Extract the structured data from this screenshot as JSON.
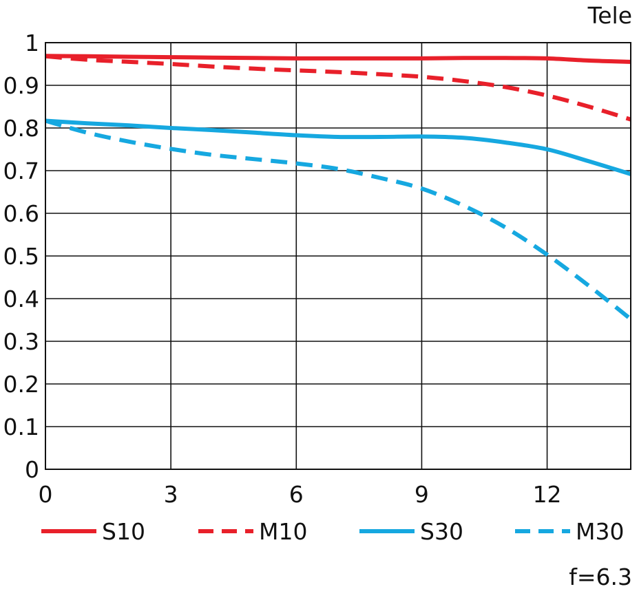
{
  "chart_data": {
    "type": "line",
    "title": "Tele",
    "footnote": "f=6.3",
    "xlabel": "",
    "ylabel": "",
    "xlim": [
      0,
      14
    ],
    "ylim": [
      0,
      1
    ],
    "x_ticks": [
      0,
      3,
      6,
      9,
      12
    ],
    "x_tick_labels": [
      "0",
      "3",
      "6",
      "9",
      "12"
    ],
    "y_ticks": [
      0,
      0.1,
      0.2,
      0.3,
      0.4,
      0.5,
      0.6,
      0.7,
      0.8,
      0.9,
      1
    ],
    "y_tick_labels": [
      "0",
      "0.1",
      "0.2",
      "0.3",
      "0.4",
      "0.5",
      "0.6",
      "0.7",
      "0.8",
      "0.9",
      "1"
    ],
    "grid": true,
    "legend_position": "bottom",
    "x": [
      0,
      1,
      2,
      3,
      4,
      5,
      6,
      7,
      8,
      9,
      10,
      11,
      12,
      13,
      14
    ],
    "series": [
      {
        "name": "S10",
        "color": "#e8202a",
        "dashed": false,
        "values": [
          0.969,
          0.968,
          0.967,
          0.966,
          0.965,
          0.964,
          0.963,
          0.963,
          0.963,
          0.963,
          0.964,
          0.964,
          0.963,
          0.958,
          0.955
        ]
      },
      {
        "name": "M10",
        "color": "#e8202a",
        "dashed": true,
        "values": [
          0.968,
          0.96,
          0.955,
          0.95,
          0.944,
          0.939,
          0.935,
          0.931,
          0.926,
          0.92,
          0.91,
          0.896,
          0.876,
          0.85,
          0.82
        ]
      },
      {
        "name": "S30",
        "color": "#16a8e0",
        "dashed": false,
        "values": [
          0.817,
          0.811,
          0.806,
          0.8,
          0.795,
          0.789,
          0.783,
          0.779,
          0.779,
          0.78,
          0.777,
          0.766,
          0.75,
          0.722,
          0.692
        ]
      },
      {
        "name": "M30",
        "color": "#16a8e0",
        "dashed": true,
        "values": [
          0.817,
          0.789,
          0.768,
          0.751,
          0.737,
          0.727,
          0.717,
          0.704,
          0.683,
          0.658,
          0.618,
          0.567,
          0.503,
          0.43,
          0.352
        ]
      }
    ]
  }
}
